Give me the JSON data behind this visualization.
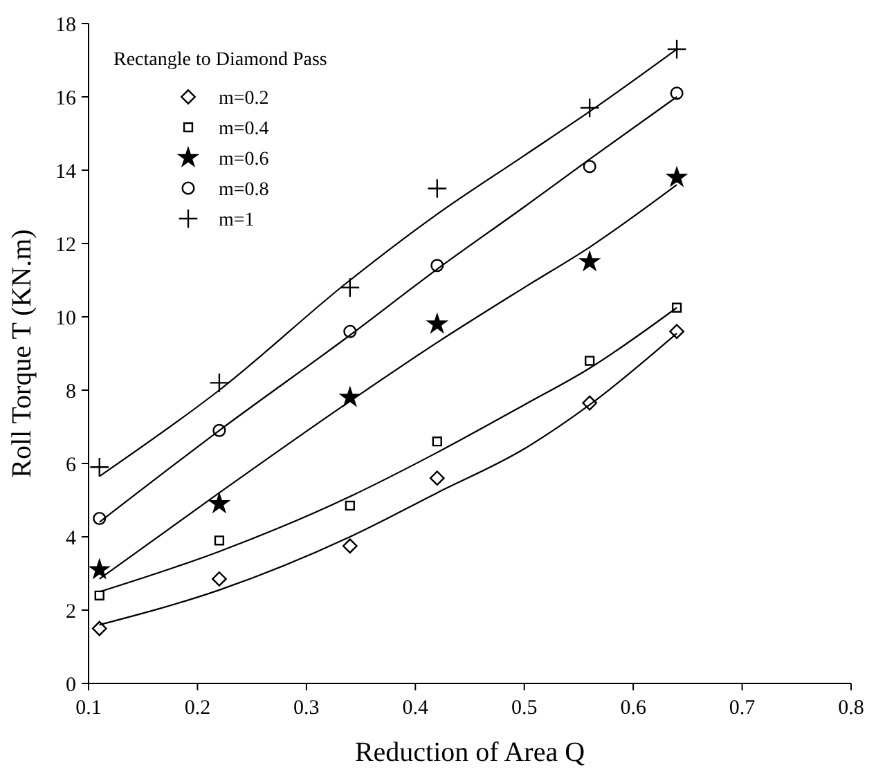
{
  "chart_data": {
    "type": "scatter",
    "xlabel": "Reduction of Area Q",
    "ylabel": "Roll Torque T (KN.m)",
    "legend_title": "Rectangle to Diamond Pass",
    "legend": "top left",
    "grid": false,
    "xlim": [
      0.1,
      0.8
    ],
    "xticks": [
      0.1,
      0.2,
      0.3,
      0.4,
      0.5,
      0.6,
      0.7,
      0.8
    ],
    "ylim": [
      0,
      18
    ],
    "yticks": [
      0,
      2,
      4,
      6,
      8,
      10,
      12,
      14,
      16,
      18
    ],
    "x": [
      0.11,
      0.22,
      0.34,
      0.42,
      0.56,
      0.64
    ],
    "series": [
      {
        "name": "m=0.2",
        "color": "#000000",
        "marker": "diamond",
        "values": [
          1.5,
          2.85,
          3.75,
          5.6,
          7.65,
          9.6
        ]
      },
      {
        "name": "m=0.4",
        "color": "#000000",
        "marker": "square",
        "values": [
          2.4,
          3.9,
          4.85,
          6.6,
          8.8,
          10.25
        ]
      },
      {
        "name": "m=0.6",
        "color": "#000000",
        "marker": "star",
        "values": [
          3.1,
          4.9,
          7.8,
          9.8,
          11.5,
          13.8
        ]
      },
      {
        "name": "m=0.8",
        "color": "#000000",
        "marker": "circle",
        "values": [
          4.5,
          6.9,
          9.6,
          11.4,
          14.1,
          16.1
        ]
      },
      {
        "name": "m=1",
        "color": "#000000",
        "marker": "cross",
        "values": [
          5.9,
          8.2,
          10.8,
          13.5,
          15.7,
          17.3
        ]
      },
      {
        "type": "line",
        "color": "#000000",
        "marker": "none",
        "line_style": "solid",
        "x": [
          0.11,
          0.22,
          0.34,
          0.42,
          0.5,
          0.56,
          0.64
        ],
        "values": [
          1.6,
          2.55,
          4.0,
          5.2,
          6.4,
          7.6,
          9.55
        ]
      },
      {
        "type": "line",
        "color": "#000000",
        "marker": "none",
        "line_style": "solid",
        "x": [
          0.11,
          0.22,
          0.34,
          0.42,
          0.5,
          0.56,
          0.64
        ],
        "values": [
          2.5,
          3.6,
          5.1,
          6.3,
          7.6,
          8.6,
          10.25
        ]
      },
      {
        "type": "line",
        "color": "#000000",
        "marker": "none",
        "line_style": "solid",
        "x": [
          0.11,
          0.22,
          0.34,
          0.42,
          0.5,
          0.56,
          0.64
        ],
        "values": [
          2.85,
          5.2,
          7.7,
          9.3,
          10.8,
          11.9,
          13.6
        ]
      },
      {
        "type": "line",
        "color": "#000000",
        "marker": "none",
        "line_style": "solid",
        "x": [
          0.11,
          0.22,
          0.34,
          0.42,
          0.5,
          0.56,
          0.64
        ],
        "values": [
          4.4,
          6.9,
          9.5,
          11.3,
          13.0,
          14.3,
          16.0
        ]
      },
      {
        "type": "line",
        "color": "#000000",
        "marker": "none",
        "line_style": "solid",
        "x": [
          0.11,
          0.22,
          0.34,
          0.42,
          0.5,
          0.56,
          0.64
        ],
        "values": [
          5.65,
          8.0,
          11.0,
          12.8,
          14.4,
          15.6,
          17.3
        ]
      }
    ]
  }
}
